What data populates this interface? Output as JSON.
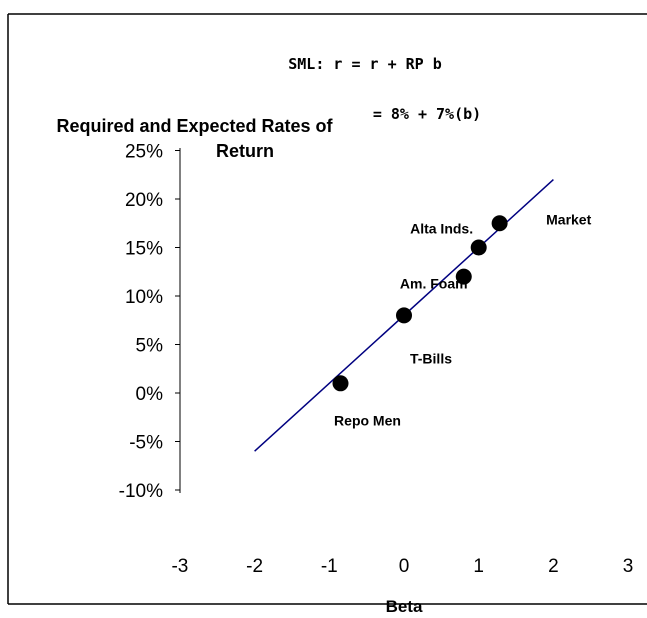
{
  "chart_data": {
    "type": "scatter",
    "title": "Required and Expected Rates of Return",
    "xlabel": "Beta",
    "ylabel": "",
    "xlim": [
      -3,
      3
    ],
    "ylim": [
      -0.1,
      0.25
    ],
    "x_ticks": [
      -3,
      -2,
      -1,
      0,
      1,
      2,
      3
    ],
    "y_ticks": [
      0.25,
      0.2,
      0.15,
      0.1,
      0.05,
      0.0,
      -0.05,
      -0.1
    ],
    "x_tick_labels": [
      "-3",
      "-2",
      "-1",
      "0",
      "1",
      "2",
      "3"
    ],
    "y_tick_labels": [
      "25%",
      "20%",
      "15%",
      "10%",
      "5%",
      "0%",
      "-5%",
      "-10%"
    ],
    "grid": false,
    "legend": "none",
    "sml_line": {
      "x": [
        -2,
        2
      ],
      "y": [
        -0.06,
        0.22
      ],
      "color": "#000080"
    },
    "points": [
      {
        "label": "Repo Men",
        "x": -0.85,
        "y": 0.01
      },
      {
        "label": "T-Bills",
        "x": 0.0,
        "y": 0.08
      },
      {
        "label": "Am. Foam",
        "x": 0.8,
        "y": 0.12
      },
      {
        "label": "Market",
        "x": 1.0,
        "y": 0.15
      },
      {
        "label": "Alta Inds.",
        "x": 1.28,
        "y": 0.175
      }
    ],
    "equation_line1": "SML: r = r + RP b",
    "equation_line2": "= 8% + 7%(b)"
  }
}
